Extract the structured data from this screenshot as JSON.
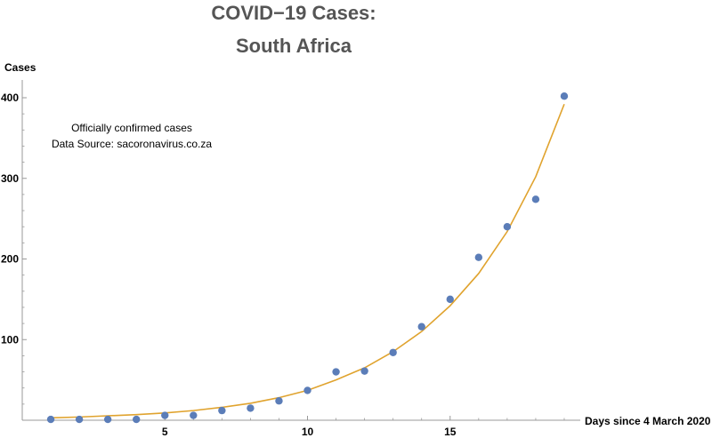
{
  "chart_data": {
    "type": "scatter",
    "title": "COVID−19 Cases:",
    "subtitle": "South Africa",
    "xlabel": "Days since 4 March 2020",
    "ylabel": "Cases",
    "xlim": [
      0,
      19.5
    ],
    "ylim": [
      0,
      400
    ],
    "x_ticks": [
      5,
      10,
      15
    ],
    "y_ticks": [
      100,
      200,
      300,
      400
    ],
    "x_tick_labels": [
      "5",
      "10",
      "15"
    ],
    "y_tick_labels": [
      "100",
      "200",
      "300",
      "400"
    ],
    "grid": false,
    "annotations": [
      "Officially confirmed cases",
      "Data Source: sacoronavirus.co.za"
    ],
    "colors": {
      "points": "#5b7db8",
      "fit": "#e0a32e"
    },
    "series": [
      {
        "type": "scatter",
        "x": [
          1,
          2,
          3,
          4,
          5,
          6,
          7,
          8,
          9,
          10,
          11,
          12,
          13,
          14,
          15,
          16,
          17,
          18,
          19
        ],
        "y": [
          1,
          1,
          1,
          1,
          6,
          6,
          12,
          15,
          24,
          37,
          60,
          61,
          84,
          116,
          150,
          202,
          240,
          274,
          402
        ]
      },
      {
        "type": "line",
        "x": [
          1,
          2,
          3,
          4,
          5,
          6,
          7,
          8,
          9,
          10,
          11,
          12,
          13,
          14,
          15,
          16,
          17,
          18,
          19
        ],
        "y": [
          3,
          4,
          5.5,
          7,
          9,
          12,
          16,
          21,
          28,
          37,
          50,
          65,
          85,
          110,
          142,
          182,
          234,
          302,
          392
        ]
      }
    ]
  }
}
